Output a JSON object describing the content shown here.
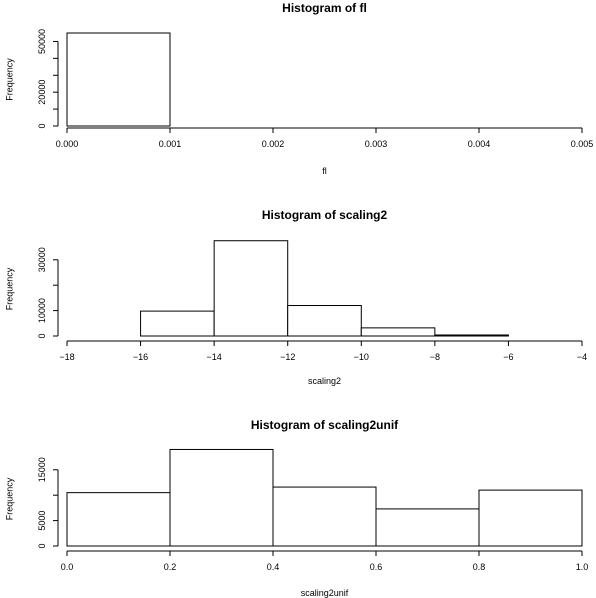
{
  "chart_data": [
    {
      "type": "bar",
      "title": "Histogram of fl",
      "xlabel": "fl",
      "ylabel": "Frequency",
      "xlim": [
        0,
        0.005
      ],
      "ylim": [
        0,
        55000
      ],
      "xticks": [
        0,
        0.001,
        0.002,
        0.003,
        0.004,
        0.005
      ],
      "xtick_labels": [
        "0.000",
        "0.001",
        "0.002",
        "0.003",
        "0.004",
        "0.005"
      ],
      "yticks": [
        0,
        10000,
        20000,
        30000,
        40000,
        50000
      ],
      "ytick_labels": [
        "0",
        "",
        "20000",
        "",
        "",
        "50000"
      ],
      "bins": [
        {
          "x0": 0,
          "x1": 0.001,
          "count": 55000
        },
        {
          "x0": 0.001,
          "x1": 0.002,
          "count": 0
        },
        {
          "x0": 0.002,
          "x1": 0.003,
          "count": 0
        },
        {
          "x0": 0.003,
          "x1": 0.004,
          "count": 0
        },
        {
          "x0": 0.004,
          "x1": 0.005,
          "count": 0
        }
      ]
    },
    {
      "type": "bar",
      "title": "Histogram of scaling2",
      "xlabel": "scaling2",
      "ylabel": "Frequency",
      "xlim": [
        -18,
        -4
      ],
      "ylim": [
        0,
        37000
      ],
      "xticks": [
        -18,
        -16,
        -14,
        -12,
        -10,
        -8,
        -6,
        -4
      ],
      "xtick_labels": [
        "−18",
        "−16",
        "−14",
        "−12",
        "−10",
        "−8",
        "−6",
        "−4"
      ],
      "yticks": [
        0,
        10000,
        20000,
        30000
      ],
      "ytick_labels": [
        "0",
        "10000",
        "",
        "30000"
      ],
      "bins": [
        {
          "x0": -18,
          "x1": -16,
          "count": 0
        },
        {
          "x0": -16,
          "x1": -14,
          "count": 9800
        },
        {
          "x0": -14,
          "x1": -12,
          "count": 37500
        },
        {
          "x0": -12,
          "x1": -10,
          "count": 12000
        },
        {
          "x0": -10,
          "x1": -8,
          "count": 3200
        },
        {
          "x0": -8,
          "x1": -6,
          "count": 400
        },
        {
          "x0": -6,
          "x1": -4,
          "count": 0
        }
      ]
    },
    {
      "type": "bar",
      "title": "Histogram of scaling2unif",
      "xlabel": "scaling2unif",
      "ylabel": "Frequency",
      "xlim": [
        0,
        1
      ],
      "ylim": [
        0,
        18500
      ],
      "xticks": [
        0,
        0.2,
        0.4,
        0.6,
        0.8,
        1.0
      ],
      "xtick_labels": [
        "0.0",
        "0.2",
        "0.4",
        "0.6",
        "0.8",
        "1.0"
      ],
      "yticks": [
        0,
        5000,
        10000,
        15000
      ],
      "ytick_labels": [
        "0",
        "5000",
        "",
        "15000"
      ],
      "bins": [
        {
          "x0": 0,
          "x1": 0.2,
          "count": 10500
        },
        {
          "x0": 0.2,
          "x1": 0.4,
          "count": 19000
        },
        {
          "x0": 0.4,
          "x1": 0.6,
          "count": 11600
        },
        {
          "x0": 0.6,
          "x1": 0.8,
          "count": 7300
        },
        {
          "x0": 0.8,
          "x1": 1.0,
          "count": 11000
        }
      ]
    }
  ]
}
